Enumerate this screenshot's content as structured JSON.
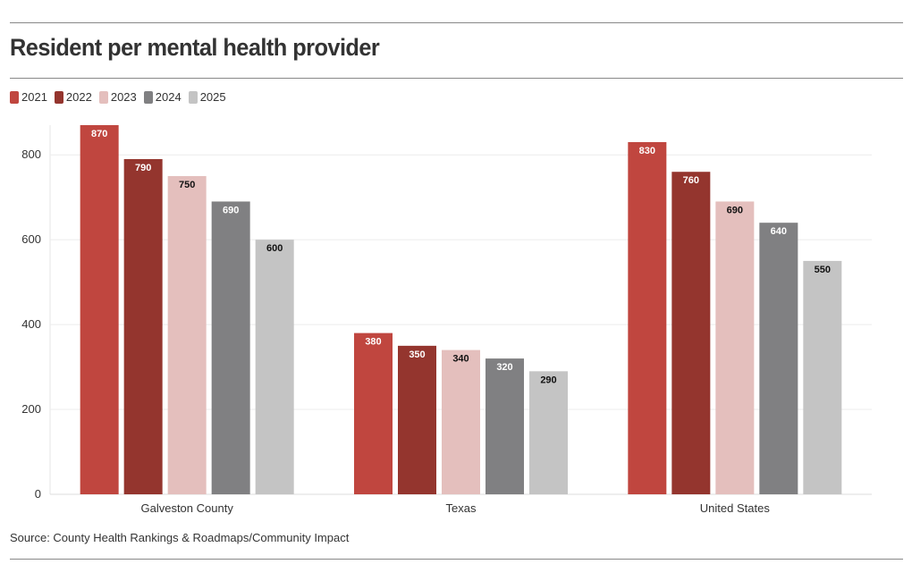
{
  "title": "Resident per mental health provider",
  "source": "Source: County Health Rankings & Roadmaps/Community Impact",
  "chart_data": {
    "type": "bar",
    "title": "Resident per mental health provider",
    "categories": [
      "Galveston County",
      "Texas",
      "United States"
    ],
    "series": [
      {
        "name": "2021",
        "color": "#c0463f",
        "label_color": "#ffffff",
        "values": [
          870,
          380,
          830
        ]
      },
      {
        "name": "2022",
        "color": "#94352e",
        "label_color": "#ffffff",
        "values": [
          790,
          350,
          760
        ]
      },
      {
        "name": "2023",
        "color": "#e4bfbd",
        "label_color": "#111111",
        "values": [
          750,
          340,
          690
        ]
      },
      {
        "name": "2024",
        "color": "#808082",
        "label_color": "#ffffff",
        "values": [
          690,
          320,
          640
        ]
      },
      {
        "name": "2025",
        "color": "#c4c4c4",
        "label_color": "#111111",
        "values": [
          600,
          290,
          550
        ]
      }
    ],
    "yticks": [
      "0",
      "200",
      "400",
      "600",
      "800"
    ],
    "ylim": [
      0,
      870
    ],
    "xlabel": "",
    "ylabel": "",
    "grid": true,
    "legend": "top-left"
  }
}
